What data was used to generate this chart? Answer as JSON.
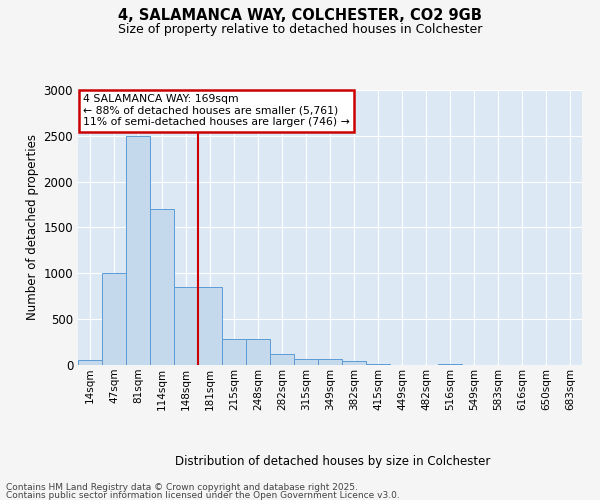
{
  "title_line1": "4, SALAMANCA WAY, COLCHESTER, CO2 9GB",
  "title_line2": "Size of property relative to detached houses in Colchester",
  "xlabel": "Distribution of detached houses by size in Colchester",
  "ylabel": "Number of detached properties",
  "categories": [
    "14sqm",
    "47sqm",
    "81sqm",
    "114sqm",
    "148sqm",
    "181sqm",
    "215sqm",
    "248sqm",
    "282sqm",
    "315sqm",
    "349sqm",
    "382sqm",
    "415sqm",
    "449sqm",
    "482sqm",
    "516sqm",
    "549sqm",
    "583sqm",
    "616sqm",
    "650sqm",
    "683sqm"
  ],
  "values": [
    50,
    1000,
    2500,
    1700,
    850,
    850,
    280,
    280,
    120,
    70,
    70,
    40,
    15,
    0,
    0,
    15,
    0,
    0,
    0,
    0,
    0
  ],
  "bar_color": "#c5d9ed",
  "bar_edge_color": "#5b9bd5",
  "vline_position": 4.5,
  "vline_color": "#cc0000",
  "annotation_text": "4 SALAMANCA WAY: 169sqm\n← 88% of detached houses are smaller (5,761)\n11% of semi-detached houses are larger (746) →",
  "annotation_box_facecolor": "#ffffff",
  "annotation_box_edgecolor": "#cc0000",
  "ylim": [
    0,
    3000
  ],
  "yticks": [
    0,
    500,
    1000,
    1500,
    2000,
    2500,
    3000
  ],
  "plot_bg_color": "#dce9f5",
  "grid_color": "#ffffff",
  "fig_bg_color": "#f5f5f5",
  "footer_line1": "Contains HM Land Registry data © Crown copyright and database right 2025.",
  "footer_line2": "Contains public sector information licensed under the Open Government Licence v3.0."
}
